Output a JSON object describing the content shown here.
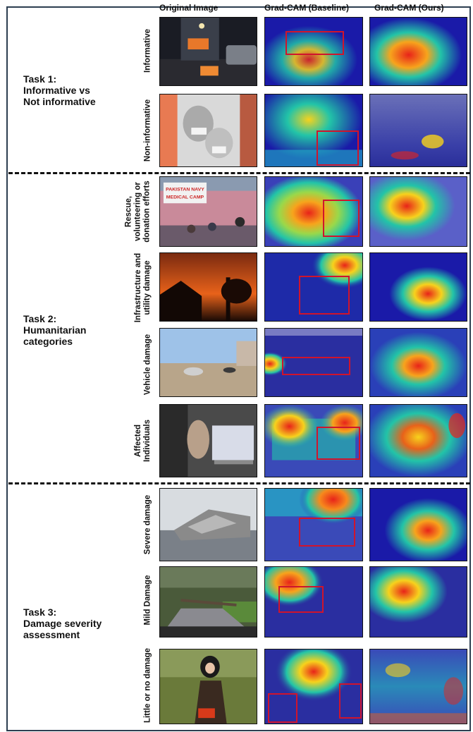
{
  "columns": [
    "Original Image",
    "Grad-CAM (Baseline)",
    "Grad-CAM (Ours)"
  ],
  "tasks": [
    {
      "lines": [
        "Task 1:",
        "Informative vs",
        "Not informative"
      ]
    },
    {
      "lines": [
        "Task 2:",
        "Humanitarian",
        "categories"
      ]
    },
    {
      "lines": [
        "Task 3:",
        "Damage severity",
        "assessment"
      ]
    }
  ],
  "rows": [
    {
      "label": [
        "Informative"
      ]
    },
    {
      "label": [
        "Non-informative"
      ]
    },
    {
      "label": [
        "Rescue,",
        "volunteering or",
        "donation efforts"
      ]
    },
    {
      "label": [
        "Infrastructure and",
        "utility damage"
      ]
    },
    {
      "label": [
        "Vehicle damage"
      ]
    },
    {
      "label": [
        "Affected",
        "Individuals"
      ]
    },
    {
      "label": [
        "Severe damage"
      ]
    },
    {
      "label": [
        "Mild Damage"
      ]
    },
    {
      "label": [
        "Little or no damage"
      ]
    }
  ],
  "photo_labels": {
    "banner_line1": "PAKISTAN NAVY",
    "banner_line2": "MEDICAL CAMP"
  },
  "colors": {
    "frame": "#2c3e50",
    "bbox": "#d0142c",
    "heat_low": "#1a1aa8",
    "heat_mid": "#22c4a8",
    "heat_high": "#e8231a"
  }
}
